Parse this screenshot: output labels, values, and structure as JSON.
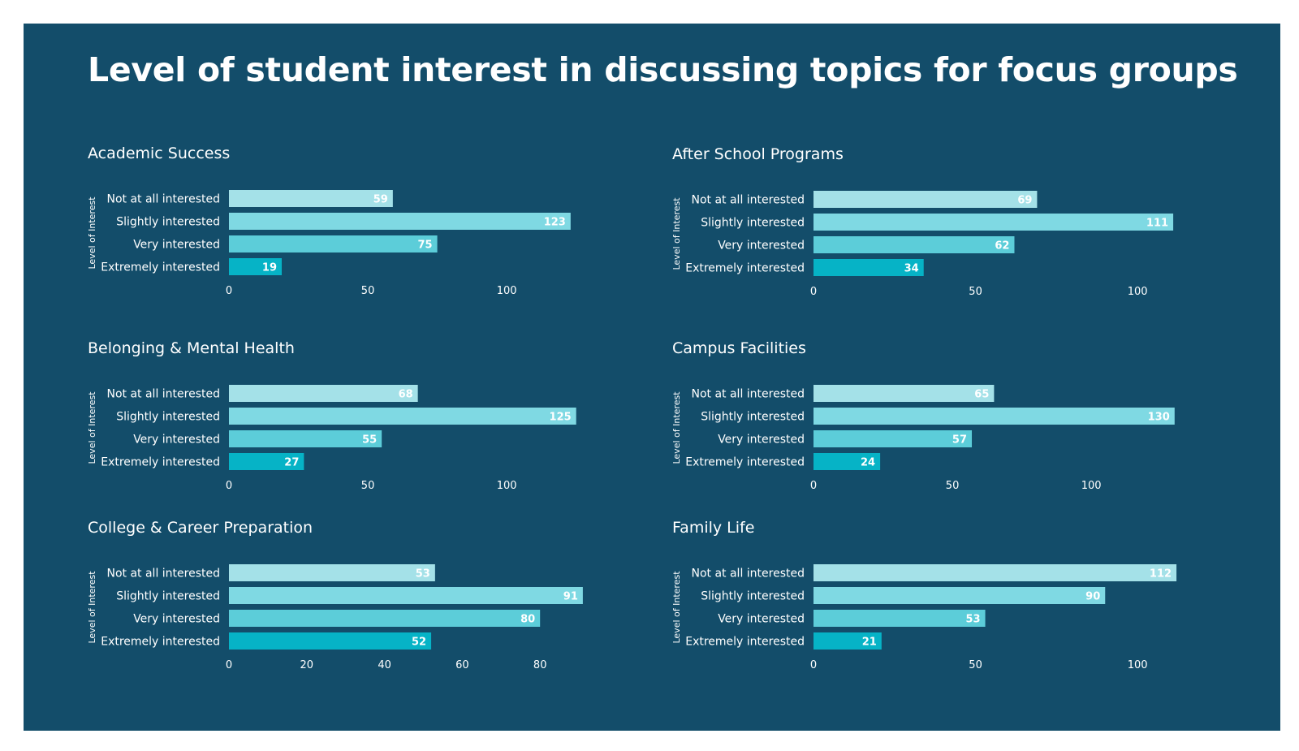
{
  "title": "Level of student interest in discussing topics for focus groups",
  "colors": {
    "background": "#134d6a",
    "bars": [
      "#a4e1e8",
      "#7fd9e3",
      "#5ccdd9",
      "#06b3c6"
    ]
  },
  "chart_data": [
    {
      "type": "bar",
      "orientation": "horizontal",
      "title": "Academic Success",
      "ylabel": "Level of Interest",
      "xlabel": "",
      "categories": [
        "Not at all interested",
        "Slightly interested",
        "Very interested",
        "Extremely interested"
      ],
      "values": [
        59,
        123,
        75,
        19
      ],
      "xticks": [
        0,
        50,
        100
      ],
      "xlim": [
        0,
        140
      ]
    },
    {
      "type": "bar",
      "orientation": "horizontal",
      "title": "After School Programs",
      "ylabel": "Level of Interest",
      "xlabel": "",
      "categories": [
        "Not at all interested",
        "Slightly interested",
        "Very interested",
        "Extremely interested"
      ],
      "values": [
        69,
        111,
        62,
        34
      ],
      "xticks": [
        0,
        50,
        100
      ],
      "xlim": [
        0,
        120
      ]
    },
    {
      "type": "bar",
      "orientation": "horizontal",
      "title": "Belonging & Mental Health",
      "ylabel": "Level of Interest",
      "xlabel": "",
      "categories": [
        "Not at all interested",
        "Slightly interested",
        "Very interested",
        "Extremely interested"
      ],
      "values": [
        68,
        125,
        55,
        27
      ],
      "xticks": [
        0,
        50,
        100
      ],
      "xlim": [
        0,
        140
      ]
    },
    {
      "type": "bar",
      "orientation": "horizontal",
      "title": "Campus Facilities",
      "ylabel": "Level of Interest",
      "xlabel": "",
      "categories": [
        "Not at all interested",
        "Slightly interested",
        "Very interested",
        "Extremely interested"
      ],
      "values": [
        65,
        130,
        57,
        24
      ],
      "xticks": [
        0,
        50,
        100
      ],
      "xlim": [
        0,
        140
      ]
    },
    {
      "type": "bar",
      "orientation": "horizontal",
      "title": "College & Career Preparation",
      "ylabel": "Level of Interest",
      "xlabel": "",
      "categories": [
        "Not at all interested",
        "Slightly interested",
        "Very interested",
        "Extremely interested"
      ],
      "values": [
        53,
        91,
        80,
        52
      ],
      "xticks": [
        0,
        20,
        40,
        60,
        80
      ],
      "xlim": [
        0,
        100
      ]
    },
    {
      "type": "bar",
      "orientation": "horizontal",
      "title": "Family Life",
      "ylabel": "Level of Interest",
      "xlabel": "",
      "categories": [
        "Not at all interested",
        "Slightly interested",
        "Very interested",
        "Extremely interested"
      ],
      "values": [
        112,
        90,
        53,
        21
      ],
      "xticks": [
        0,
        50,
        100
      ],
      "xlim": [
        0,
        120
      ]
    }
  ]
}
